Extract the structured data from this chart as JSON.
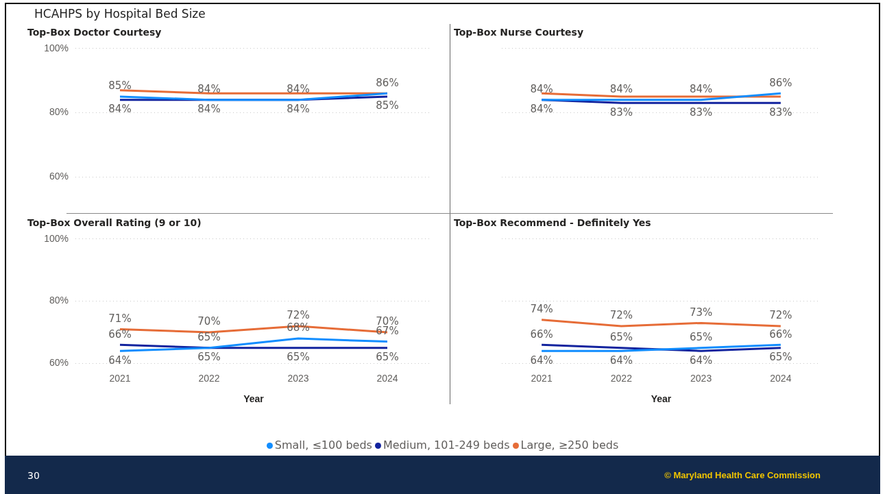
{
  "chart_data": [
    {
      "type": "line",
      "title": "Top-Box Doctor Courtesy",
      "annotations": [
        "HCAHPS by Hospital Bed Size"
      ],
      "categories": [
        "2021",
        "2022",
        "2023",
        "2024"
      ],
      "ylim": [
        60,
        100
      ],
      "yticks": [
        {
          "value": 60,
          "label": "60%"
        },
        {
          "value": 80,
          "label": "80%"
        },
        {
          "value": 100,
          "label": "100%"
        }
      ],
      "grid": "y",
      "tick_labels": "y",
      "series": [
        {
          "color": "#118dff",
          "values": [
            85,
            84,
            84,
            86
          ],
          "value_labels": [
            "85%",
            "84%",
            "84%",
            "86%"
          ]
        },
        {
          "color": "#12239e",
          "values": [
            84,
            84,
            84,
            85
          ],
          "value_labels": [
            "84%",
            "84%",
            "84%",
            "85%"
          ]
        },
        {
          "color": "#e66c37",
          "values": [
            87,
            86,
            86,
            86
          ]
        }
      ]
    },
    {
      "type": "line",
      "title": "Top-Box Nurse Courtesy",
      "categories": [
        "2021",
        "2022",
        "2023",
        "2024"
      ],
      "ylim": [
        60,
        100
      ],
      "yticks": [
        {
          "value": 60,
          "label": null
        },
        {
          "value": 80,
          "label": null
        },
        {
          "value": 100,
          "label": null
        }
      ],
      "grid": "y",
      "tick_labels": false,
      "series": [
        {
          "color": "#118dff",
          "values": [
            84,
            84,
            84,
            86
          ],
          "value_labels": [
            "84%",
            "84%",
            "84%",
            "86%"
          ]
        },
        {
          "color": "#12239e",
          "values": [
            84,
            83,
            83,
            83
          ],
          "value_labels": [
            "84%",
            "83%",
            "83%",
            "83%"
          ]
        },
        {
          "color": "#e66c37",
          "values": [
            86,
            85,
            85,
            85
          ]
        }
      ]
    },
    {
      "type": "line",
      "title": "Top-Box Overall Rating (9 or 10)",
      "xlabel": "Year",
      "annotations": [
        "30"
      ],
      "categories": [
        "2021",
        "2022",
        "2023",
        "2024"
      ],
      "ylim": [
        60,
        100
      ],
      "yticks": [
        {
          "value": 60,
          "label": "60%"
        },
        {
          "value": 80,
          "label": "80%"
        },
        {
          "value": 100,
          "label": "100%"
        }
      ],
      "grid": "y",
      "series": [
        {
          "color": "#118dff",
          "values": [
            64,
            65,
            68,
            67
          ],
          "value_labels": [
            "64%",
            "65%",
            "68%",
            "67%"
          ]
        },
        {
          "color": "#12239e",
          "values": [
            66,
            65,
            65,
            65
          ],
          "value_labels": [
            "66%",
            "65%",
            "65%",
            "65%"
          ]
        },
        {
          "color": "#e66c37",
          "values": [
            71,
            70,
            72,
            70
          ],
          "value_labels": [
            "71%",
            "70%",
            "72%",
            "70%"
          ]
        }
      ]
    },
    {
      "type": "line",
      "title": "Top-Box Recommend - Definitely Yes",
      "xlabel": "Year",
      "annotations": [
        "© Maryland Health Care Commission"
      ],
      "categories": [
        "2021",
        "2022",
        "2023",
        "2024"
      ],
      "ylim": [
        60,
        100
      ],
      "yticks": [
        {
          "value": 60,
          "label": null
        },
        {
          "value": 80,
          "label": null
        },
        {
          "value": 100,
          "label": null
        }
      ],
      "grid": "y",
      "tick_labels": "x",
      "legend": "bottom",
      "series": [
        {
          "name": "Small, ≤100 beds",
          "color": "#118dff",
          "values": [
            64,
            64,
            65,
            66
          ],
          "value_labels": [
            "64%",
            "64%",
            "65%",
            "66%"
          ]
        },
        {
          "name": "Medium, 101-249 beds",
          "color": "#12239e",
          "values": [
            66,
            65,
            64,
            65
          ],
          "value_labels": [
            "66%",
            "65%",
            "64%",
            "65%"
          ]
        },
        {
          "name": "Large, ≥250 beds",
          "color": "#e66c37",
          "values": [
            74,
            72,
            73,
            72
          ],
          "value_labels": [
            "74%",
            "72%",
            "73%",
            "72%"
          ]
        }
      ]
    }
  ]
}
